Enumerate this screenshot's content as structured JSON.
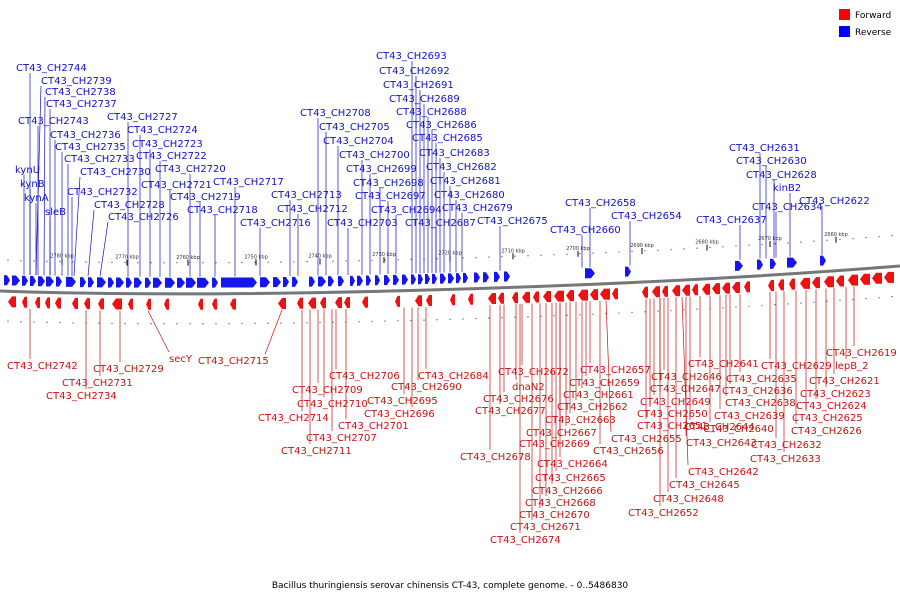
{
  "legend": [
    {
      "name": "Forward",
      "color": "#ff0000"
    },
    {
      "name": "Reverse",
      "color": "#0000ff"
    }
  ],
  "caption": "Bacillus thuringiensis serovar chinensis CT-43, complete genome. - 0..5486830",
  "colors": {
    "forward": "#ee1111",
    "reverse": "#1515ee",
    "forward_label": "#c81010",
    "reverse_label": "#1010c8",
    "axis": "#777777"
  },
  "ticks": [
    "2780 kbp",
    "2770 kbp",
    "2760 kbp",
    "2750 kbp",
    "2740 kbp",
    "2730 kbp",
    "2720 kbp",
    "2710 kbp",
    "2700 kbp",
    "2690 kbp",
    "2680 kbp",
    "2670 kbp",
    "2660 kbp"
  ],
  "reverse_labels": [
    "CT43_CH2744",
    "CT43_CH2739",
    "CT43_CH2738",
    "CT43_CH2737",
    "CT43_CH2743",
    "CT43_CH2736",
    "CT43_CH2735",
    "CT43_CH2733",
    "kynU",
    "CT43_CH2730",
    "kynB",
    "CT43_CH2732",
    "kynA",
    "CT43_CH2728",
    "sleB",
    "CT43_CH2726",
    "CT43_CH2727",
    "CT43_CH2724",
    "CT43_CH2723",
    "CT43_CH2722",
    "CT43_CH2720",
    "CT43_CH2721",
    "CT43_CH2719",
    "CT43_CH2718",
    "CT43_CH2717",
    "CT43_CH2716",
    "CT43_CH2713",
    "CT43_CH2712",
    "CT43_CH2708",
    "CT43_CH2705",
    "CT43_CH2704",
    "CT43_CH2703",
    "CT43_CH2700",
    "CT43_CH2699",
    "CT43_CH2698",
    "CT43_CH2697",
    "CT43_CH2694",
    "CT43_CH2693",
    "CT43_CH2692",
    "CT43_CH2691",
    "CT43_CH2689",
    "CT43_CH2688",
    "CT43_CH2686",
    "CT43_CH2685",
    "CT43_CH2683",
    "CT43_CH2682",
    "CT43_CH2681",
    "CT43_CH2680",
    "CT43_CH2679",
    "CT43_CH2687",
    "CT43_CH2675",
    "CT43_CH2658",
    "CT43_CH2660",
    "CT43_CH2654",
    "CT43_CH2637",
    "CT43_CH2631",
    "CT43_CH2630",
    "CT43_CH2628",
    "kinB2",
    "CT43_CH2634",
    "CT43_CH2622"
  ],
  "forward_labels": [
    "CT43_CH2742",
    "CT43_CH2731",
    "CT43_CH2734",
    "CT43_CH2729",
    "secY",
    "CT43_CH2715",
    "CT43_CH2714",
    "CT43_CH2709",
    "CT43_CH2710",
    "CT43_CH2706",
    "CT43_CH2711",
    "CT43_CH2707",
    "CT43_CH2701",
    "CT43_CH2695",
    "CT43_CH2696",
    "CT43_CH2690",
    "CT43_CH2684",
    "CT43_CH2678",
    "CT43_CH2677",
    "CT43_CH2676",
    "dnaN2",
    "CT43_CH2672",
    "CT43_CH2674",
    "CT43_CH2671",
    "CT43_CH2670",
    "CT43_CH2668",
    "CT43_CH2666",
    "CT43_CH2665",
    "CT43_CH2664",
    "CT43_CH2669",
    "CT43_CH2667",
    "CT43_CH2663",
    "CT43_CH2662",
    "CT43_CH2661",
    "CT43_CH2659",
    "CT43_CH2657",
    "CT43_CH2655",
    "CT43_CH2656",
    "CT43_CH2652",
    "CT43_CH2648",
    "CT43_CH2645",
    "CT43_CH2642",
    "CT43_CH2643",
    "CT43_CH2644",
    "CT43_CH2651",
    "CT43_CH2650",
    "CT43_CH2649",
    "CT43_CH2647",
    "CT43_CH2646",
    "CT43_CH2641",
    "CT43_CH2640",
    "CT43_CH2639",
    "CT43_CH2638",
    "CT43_CH2636",
    "CT43_CH2635",
    "CT43_CH2629",
    "CT43_CH2632",
    "CT43_CH2633",
    "CT43_CH2626",
    "CT43_CH2625",
    "CT43_CH2624",
    "CT43_CH2623",
    "CT43_CH2621",
    "lepB_2",
    "CT43_CH2619"
  ]
}
